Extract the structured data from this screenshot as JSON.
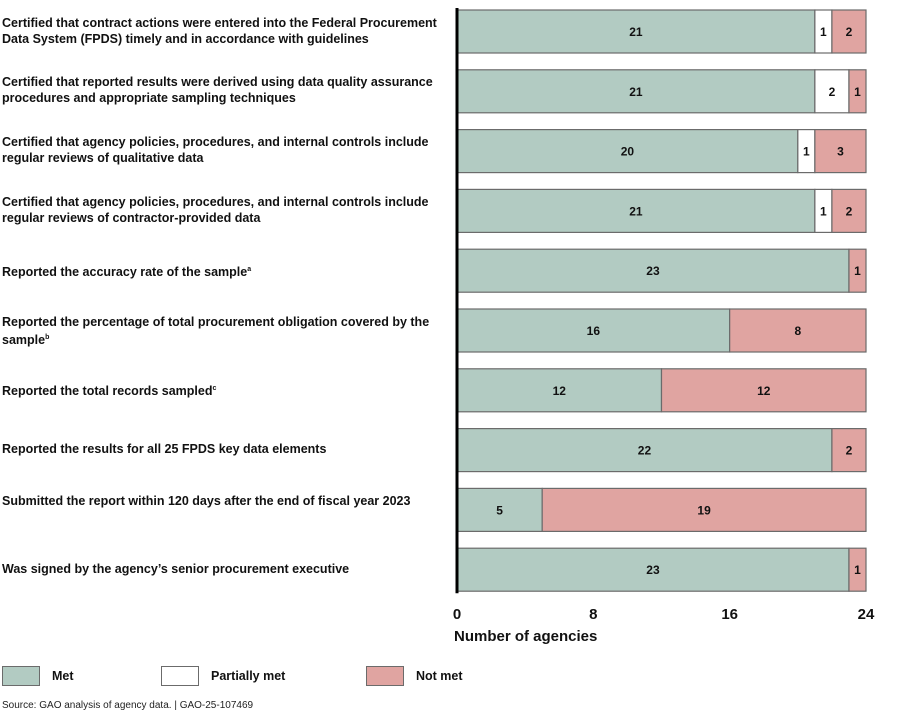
{
  "chart_data": {
    "type": "bar",
    "orientation": "horizontal",
    "stacked": true,
    "title": "",
    "xlabel": "Number of agencies",
    "ylabel": "",
    "xlim": [
      0,
      24
    ],
    "xticks": [
      0,
      8,
      16,
      24
    ],
    "grid": false,
    "legend_position": "bottom",
    "categories": [
      {
        "text": "Certified that contract actions were entered into the Federal Procurement Data System (FPDS) timely and in accordance with guidelines",
        "sup": ""
      },
      {
        "text": "Certified that reported results were derived using data quality assurance procedures and appropriate sampling techniques",
        "sup": ""
      },
      {
        "text": "Certified that agency policies, procedures, and internal controls include regular reviews of qualitative data",
        "sup": ""
      },
      {
        "text": "Certified that agency policies, procedures, and internal controls include regular reviews of contractor-provided data",
        "sup": ""
      },
      {
        "text": "Reported the accuracy rate of the sample",
        "sup": "a"
      },
      {
        "text": "Reported the percentage of total procurement obligation covered by the sample",
        "sup": "b"
      },
      {
        "text": "Reported the total records sampled",
        "sup": "c"
      },
      {
        "text": "Reported the results for all 25 FPDS key data elements",
        "sup": ""
      },
      {
        "text": "Submitted the report within 120 days after the end of fiscal year 2023",
        "sup": ""
      },
      {
        "text": "Was signed by the agency’s senior procurement executive",
        "sup": ""
      }
    ],
    "series": [
      {
        "name": "Met",
        "color": "#b2cbc2",
        "values": [
          21,
          21,
          20,
          21,
          23,
          16,
          12,
          22,
          5,
          23
        ]
      },
      {
        "name": "Partially met",
        "color": "#ffffff",
        "values": [
          1,
          2,
          1,
          1,
          0,
          0,
          0,
          0,
          0,
          0
        ]
      },
      {
        "name": "Not met",
        "color": "#e0a4a1",
        "values": [
          2,
          1,
          3,
          2,
          1,
          8,
          12,
          2,
          19,
          1
        ]
      }
    ]
  },
  "legend": [
    {
      "label": "Met",
      "color": "#b2cbc2"
    },
    {
      "label": "Partially met",
      "color": "#ffffff"
    },
    {
      "label": "Not met",
      "color": "#e0a4a1"
    }
  ],
  "source": "Source: GAO analysis of agency data.  |  GAO-25-107469"
}
